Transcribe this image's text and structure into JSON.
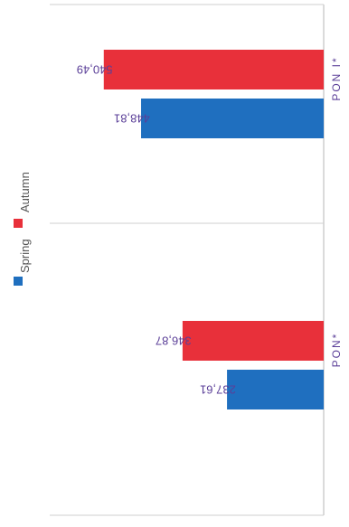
{
  "chart_data": {
    "type": "bar",
    "orientation": "horizontal",
    "rendering": "rotated 180 degrees",
    "categories": [
      "PON I*",
      "PON*"
    ],
    "series": [
      {
        "name": "Spring",
        "values": [
          448.81,
          237.61
        ],
        "color": "#1f6fbf"
      },
      {
        "name": "Autumn",
        "values": [
          540.49,
          346.87
        ],
        "color": "#e8303a"
      }
    ],
    "value_labels": {
      "Spring": [
        "448,81",
        "237,61"
      ],
      "Autumn": [
        "540,49",
        "346,87"
      ]
    },
    "xlim": [
      0,
      600
    ],
    "grid": false,
    "legend_position": "left",
    "label_color": "#5b3f98"
  }
}
